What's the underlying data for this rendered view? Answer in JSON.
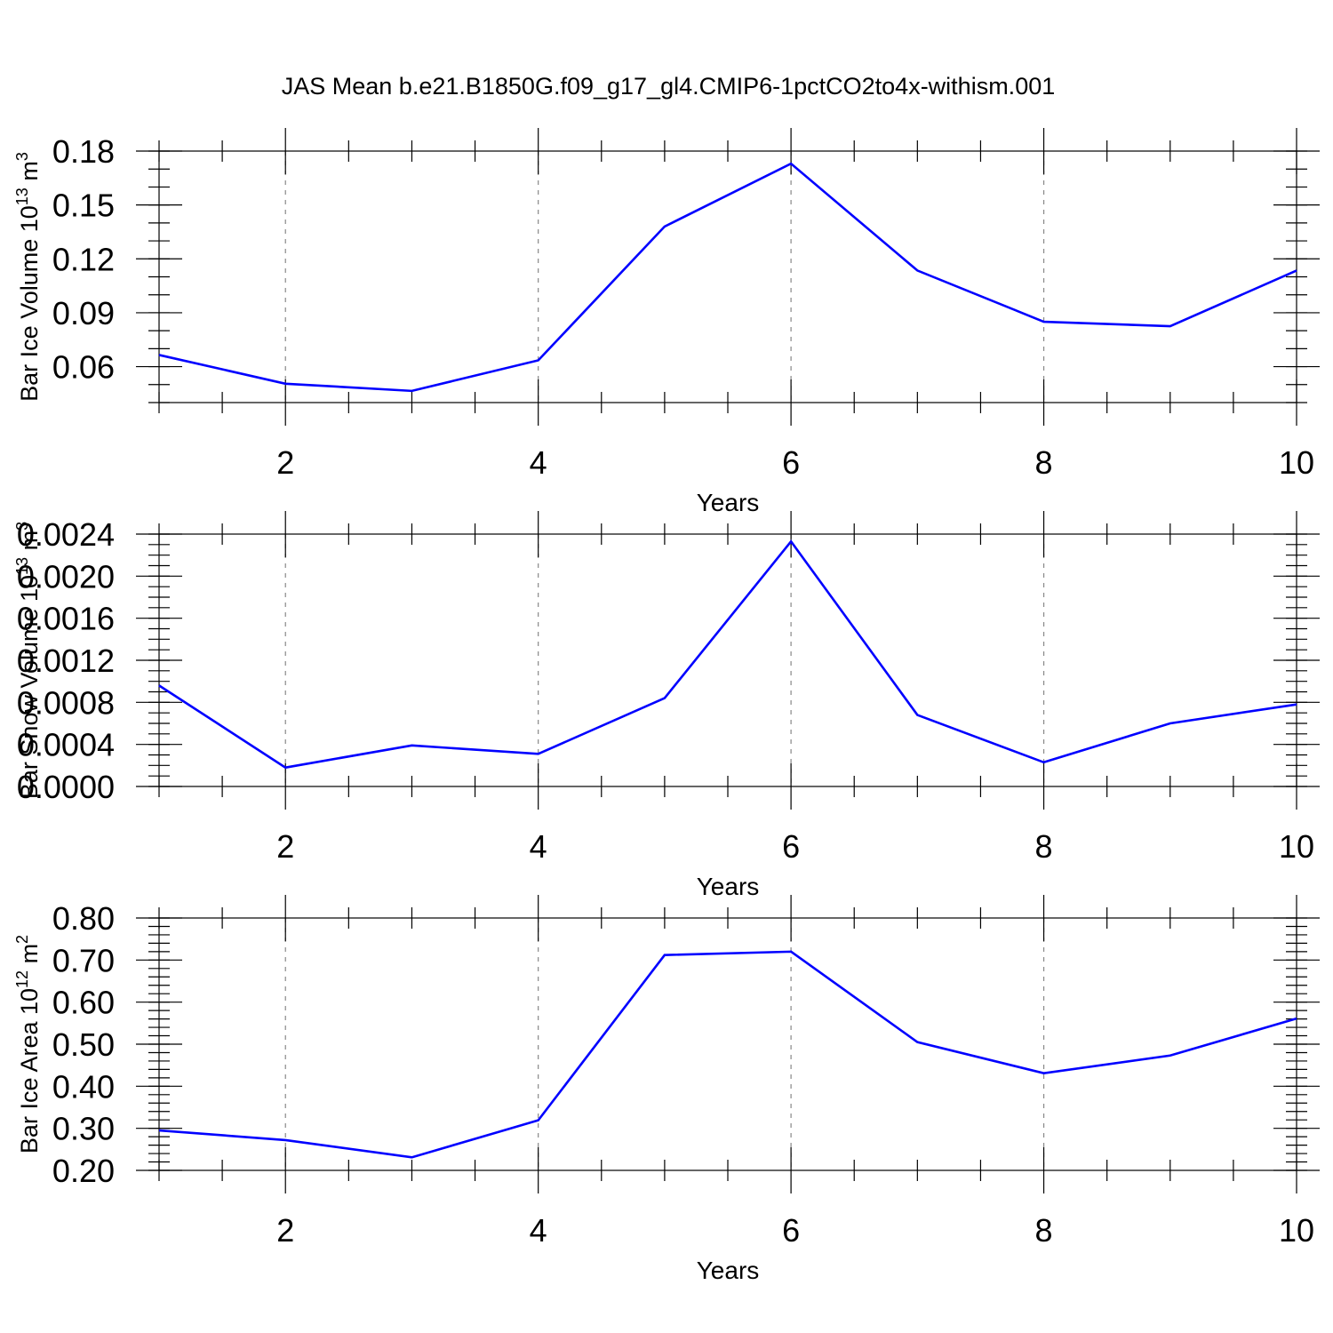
{
  "title": "JAS Mean b.e21.B1850G.f09_g17_gl4.CMIP6-1pctCO2to4x-withism.001",
  "line_color": "#0000ff",
  "chart_data": [
    {
      "type": "line",
      "ylabel": "Bar Ice Volume 10",
      "ylabel_sup": "13",
      "ylabel_unit": " m",
      "ylabel_unit_sup": "3",
      "xlabel": "Years",
      "xlim": [
        1,
        10
      ],
      "ylim": [
        0.04,
        0.18
      ],
      "y_major_ticks": [
        0.06,
        0.09,
        0.12,
        0.15,
        0.18
      ],
      "y_tick_labels": [
        "0.06",
        "0.09",
        "0.12",
        "0.15",
        "0.18"
      ],
      "y_minor_step": 0.01,
      "x_major_ticks": [
        2,
        4,
        6,
        8,
        10
      ],
      "x_tick_labels": [
        "2",
        "4",
        "6",
        "8",
        "10"
      ],
      "x_grid": true,
      "series": [
        {
          "x": [
            1,
            2,
            3,
            4,
            5,
            6,
            7,
            8,
            9,
            10
          ],
          "values": [
            0.0665,
            0.0505,
            0.0465,
            0.0635,
            0.138,
            0.173,
            0.1135,
            0.085,
            0.0825,
            0.1135
          ]
        }
      ]
    },
    {
      "type": "line",
      "ylabel": "Bar Snow Volume 10",
      "ylabel_sup": "13",
      "ylabel_unit": " m",
      "ylabel_unit_sup": "3",
      "xlabel": "Years",
      "xlim": [
        1,
        10
      ],
      "ylim": [
        0.0,
        0.0024
      ],
      "y_major_ticks": [
        0.0,
        0.0004,
        0.0008,
        0.0012,
        0.0016,
        0.002,
        0.0024
      ],
      "y_tick_labels": [
        "0.0000",
        "0.0004",
        "0.0008",
        "0.0012",
        "0.0016",
        "0.0020",
        "0.0024"
      ],
      "y_minor_step": 0.0001,
      "x_major_ticks": [
        2,
        4,
        6,
        8,
        10
      ],
      "x_tick_labels": [
        "2",
        "4",
        "6",
        "8",
        "10"
      ],
      "x_grid": true,
      "series": [
        {
          "x": [
            1,
            2,
            3,
            4,
            5,
            6,
            7,
            8,
            9,
            10
          ],
          "values": [
            0.00096,
            0.00018,
            0.00039,
            0.00031,
            0.00084,
            0.00233,
            0.00068,
            0.00023,
            0.0006,
            0.00078
          ]
        }
      ]
    },
    {
      "type": "line",
      "ylabel": "Bar Ice Area 10",
      "ylabel_sup": "12",
      "ylabel_unit": " m",
      "ylabel_unit_sup": "2",
      "xlabel": "Years",
      "xlim": [
        1,
        10
      ],
      "ylim": [
        0.2,
        0.8
      ],
      "y_major_ticks": [
        0.2,
        0.3,
        0.4,
        0.5,
        0.6,
        0.7,
        0.8
      ],
      "y_tick_labels": [
        "0.20",
        "0.30",
        "0.40",
        "0.50",
        "0.60",
        "0.70",
        "0.80"
      ],
      "y_minor_step": 0.02,
      "x_major_ticks": [
        2,
        4,
        6,
        8,
        10
      ],
      "x_tick_labels": [
        "2",
        "4",
        "6",
        "8",
        "10"
      ],
      "x_grid": true,
      "series": [
        {
          "x": [
            1,
            2,
            3,
            4,
            5,
            6,
            7,
            8,
            9,
            10
          ],
          "values": [
            0.295,
            0.272,
            0.231,
            0.319,
            0.712,
            0.72,
            0.505,
            0.431,
            0.473,
            0.561
          ]
        }
      ]
    }
  ]
}
